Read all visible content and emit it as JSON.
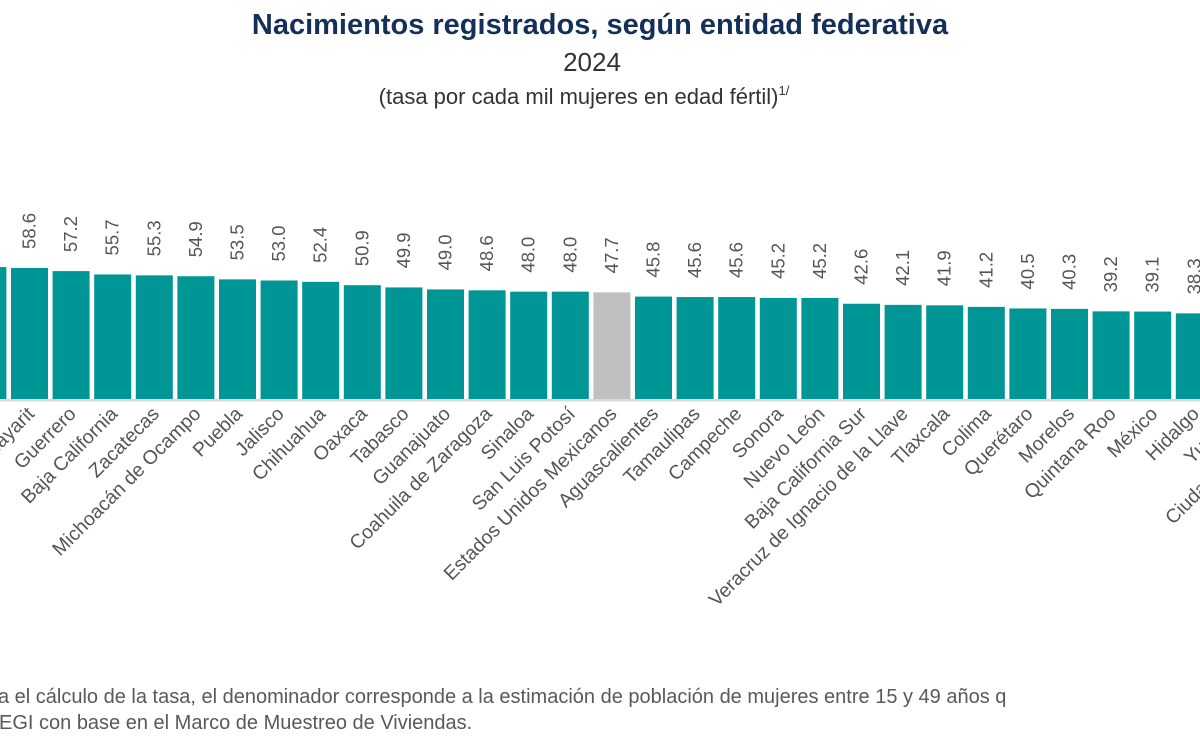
{
  "title": "Nacimientos registrados, según entidad federativa",
  "year": "2024",
  "subtitle": "(tasa por cada mil mujeres en edad fértil)",
  "subtitle_note": "1/",
  "footnote": {
    "line1": "a el cálculo de la tasa, el denominador corresponde a la estimación de población de mujeres entre 15 y 49 años q",
    "line2": "EGI con base en el Marco de Muestreo de Viviendas."
  },
  "colors": {
    "bar": "#009696",
    "national_bar": "#c0c0c0",
    "title": "#14305a",
    "baseline": "#d9d9d9"
  },
  "chart_data": {
    "type": "bar",
    "title": "Nacimientos registrados, según entidad federativa",
    "categories": [
      "Nayarit",
      "Guerrero",
      "Baja California",
      "Zacatecas",
      "Michoacán de Ocampo",
      "Puebla",
      "Jalisco",
      "Chihuahua",
      "Oaxaca",
      "Tabasco",
      "Guanajuato",
      "Coahuila de Zaragoza",
      "Sinaloa",
      "San Luis Potosí",
      "Estados Unidos Mexicanos",
      "Aguascalientes",
      "Tamaulipas",
      "Campeche",
      "Sonora",
      "Nuevo León",
      "Baja California Sur",
      "Veracruz de Ignacio de la Llave",
      "Tlaxcala",
      "Colima",
      "Querétaro",
      "Morelos",
      "Quintana Roo",
      "México",
      "Hidalgo",
      "Yucatán",
      "Ciudad de México"
    ],
    "values": [
      58.6,
      57.2,
      55.7,
      55.3,
      54.9,
      53.5,
      53.0,
      52.4,
      50.9,
      49.9,
      49.0,
      48.6,
      48.0,
      48.0,
      47.7,
      45.8,
      45.6,
      45.6,
      45.2,
      45.2,
      42.6,
      42.1,
      41.9,
      41.2,
      40.5,
      40.3,
      39.2,
      39.1,
      38.3,
      null,
      null
    ],
    "value_labels": [
      "58.6",
      "57.2",
      "55.7",
      "55.3",
      "54.9",
      "53.5",
      "53.0",
      "52.4",
      "50.9",
      "49.9",
      "49.0",
      "48.6",
      "48.0",
      "48.0",
      "47.7",
      "45.8",
      "45.6",
      "45.6",
      "45.2",
      "45.2",
      "42.6",
      "42.1",
      "41.9",
      "41.2",
      "40.5",
      "40.3",
      "39.2",
      "39.1",
      "38.3",
      "",
      ""
    ],
    "highlight": "Estados Unidos Mexicanos",
    "sort": "descending",
    "grid": false,
    "legend": "none"
  }
}
